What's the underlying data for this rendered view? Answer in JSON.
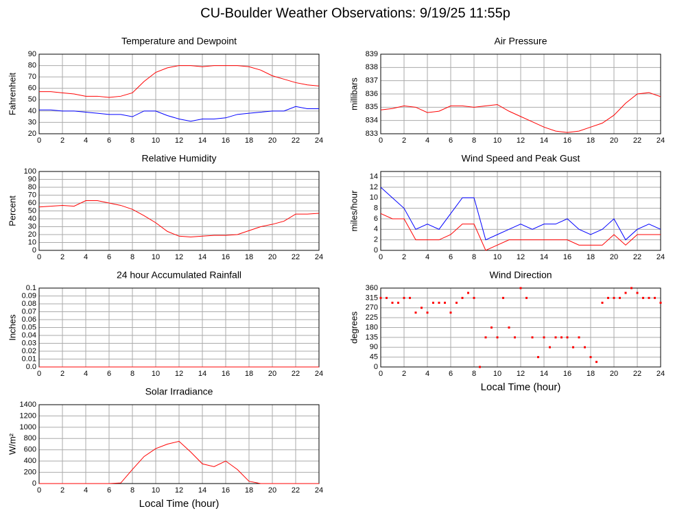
{
  "title": "CU-Boulder Weather Observations: 9/19/25 11:55p",
  "chart_data": [
    {
      "type": "line",
      "title": "Temperature and Dewpoint",
      "y_label": "Fahrenheit",
      "x": [
        0,
        1,
        2,
        3,
        4,
        5,
        6,
        7,
        8,
        9,
        10,
        11,
        12,
        13,
        14,
        15,
        16,
        17,
        18,
        19,
        20,
        21,
        22,
        23,
        24
      ],
      "series": [
        {
          "color": "#ff0000",
          "values": [
            57,
            57,
            56,
            55,
            53,
            53,
            52,
            53,
            56,
            66,
            74,
            78,
            80,
            80,
            79,
            80,
            80,
            80,
            79,
            76,
            71,
            68,
            65,
            63,
            62
          ]
        },
        {
          "color": "#0000ff",
          "values": [
            41,
            41,
            40,
            40,
            39,
            38,
            37,
            37,
            35,
            40,
            40,
            36,
            33,
            31,
            33,
            33,
            34,
            37,
            38,
            39,
            40,
            40,
            44,
            42,
            42
          ]
        }
      ],
      "xlim": [
        0,
        24
      ],
      "xticks": [
        0,
        2,
        4,
        6,
        8,
        10,
        12,
        14,
        16,
        18,
        20,
        22,
        24
      ],
      "ylim": [
        20,
        90
      ],
      "yticks": [
        20,
        30,
        40,
        50,
        60,
        70,
        80,
        90
      ],
      "grid": true
    },
    {
      "type": "line",
      "title": "Air Pressure",
      "y_label": "millibars",
      "x": [
        0,
        1,
        2,
        3,
        4,
        5,
        6,
        7,
        8,
        9,
        10,
        11,
        12,
        13,
        14,
        15,
        16,
        17,
        18,
        19,
        20,
        21,
        22,
        23,
        24
      ],
      "series": [
        {
          "color": "#ff0000",
          "values": [
            834.8,
            834.9,
            835.1,
            835.0,
            834.6,
            834.7,
            835.1,
            835.1,
            835.0,
            835.1,
            835.2,
            834.7,
            834.3,
            833.9,
            833.5,
            833.2,
            833.1,
            833.2,
            833.5,
            833.8,
            834.4,
            835.3,
            836.0,
            836.1,
            835.8
          ]
        }
      ],
      "xlim": [
        0,
        24
      ],
      "xticks": [
        0,
        2,
        4,
        6,
        8,
        10,
        12,
        14,
        16,
        18,
        20,
        22,
        24
      ],
      "ylim": [
        833,
        839
      ],
      "yticks": [
        833,
        834,
        835,
        836,
        837,
        838,
        839
      ],
      "grid": true
    },
    {
      "type": "line",
      "title": "Relative Humidity",
      "y_label": "Percent",
      "x": [
        0,
        1,
        2,
        3,
        4,
        5,
        6,
        7,
        8,
        9,
        10,
        11,
        12,
        13,
        14,
        15,
        16,
        17,
        18,
        19,
        20,
        21,
        22,
        23,
        24
      ],
      "series": [
        {
          "color": "#ff0000",
          "values": [
            55,
            56,
            57,
            56,
            63,
            63,
            60,
            57,
            52,
            44,
            35,
            24,
            18,
            17,
            18,
            19,
            19,
            20,
            25,
            30,
            33,
            37,
            46,
            46,
            47
          ]
        }
      ],
      "xlim": [
        0,
        24
      ],
      "xticks": [
        0,
        2,
        4,
        6,
        8,
        10,
        12,
        14,
        16,
        18,
        20,
        22,
        24
      ],
      "ylim": [
        0,
        100
      ],
      "yticks": [
        0,
        10,
        20,
        30,
        40,
        50,
        60,
        70,
        80,
        90,
        100
      ],
      "grid": true
    },
    {
      "type": "line",
      "title": "Wind Speed and Peak Gust",
      "y_label": "miles/hour",
      "x": [
        0,
        1,
        2,
        3,
        4,
        5,
        6,
        7,
        8,
        9,
        10,
        11,
        12,
        13,
        14,
        15,
        16,
        17,
        18,
        19,
        20,
        21,
        22,
        23,
        24
      ],
      "series": [
        {
          "color": "#0000ff",
          "values": [
            12,
            10,
            8,
            4,
            5,
            4,
            7,
            10,
            10,
            2,
            3,
            4,
            5,
            4,
            5,
            5,
            6,
            4,
            3,
            4,
            6,
            2,
            4,
            5,
            4
          ]
        },
        {
          "color": "#ff0000",
          "values": [
            7,
            6,
            6,
            2,
            2,
            2,
            3,
            5,
            5,
            0,
            1,
            2,
            2,
            2,
            2,
            2,
            2,
            1,
            1,
            1,
            3,
            1,
            3,
            3,
            3
          ]
        }
      ],
      "xlim": [
        0,
        24
      ],
      "xticks": [
        0,
        2,
        4,
        6,
        8,
        10,
        12,
        14,
        16,
        18,
        20,
        22,
        24
      ],
      "ylim": [
        0,
        15
      ],
      "yticks": [
        0,
        2,
        4,
        6,
        8,
        10,
        12,
        14
      ],
      "grid": true
    },
    {
      "type": "line",
      "title": "24 hour Accumulated Rainfall",
      "y_label": "Inches",
      "x": [
        0,
        4,
        8,
        12,
        16,
        20,
        24
      ],
      "series": [
        {
          "color": "#ff0000",
          "values": [
            0,
            0,
            0,
            0,
            0,
            0,
            0
          ]
        }
      ],
      "xlim": [
        0,
        24
      ],
      "xticks": [
        0,
        2,
        4,
        6,
        8,
        10,
        12,
        14,
        16,
        18,
        20,
        22,
        24
      ],
      "ylim": [
        0,
        0.1
      ],
      "yticks": [
        {
          "value": 0,
          "label": "0.0"
        },
        0.01,
        0.02,
        0.03,
        0.04,
        0.05,
        0.06,
        0.07,
        0.08,
        0.09,
        0.1
      ],
      "grid": true
    },
    {
      "type": "scatter",
      "title": "Wind Direction",
      "y_label": "degrees",
      "x_label": "Local Time (hour)",
      "x": [
        0,
        0.5,
        1,
        1.5,
        2,
        2.5,
        3,
        3.5,
        4,
        4.5,
        5,
        5.5,
        6,
        6.5,
        7,
        7.5,
        8,
        8.5,
        9,
        9.5,
        10,
        10.5,
        11,
        11.5,
        12,
        12.5,
        13,
        13.5,
        14,
        14.5,
        15,
        15.5,
        16,
        16.5,
        17,
        17.5,
        18,
        18.5,
        19,
        19.5,
        20,
        20.5,
        21,
        21.5,
        22,
        22.5,
        23,
        23.5,
        24
      ],
      "series": [
        {
          "color": "#ff0000",
          "values": [
            315,
            315,
            293,
            293,
            315,
            315,
            248,
            270,
            248,
            293,
            293,
            293,
            248,
            293,
            315,
            338,
            315,
            0,
            135,
            180,
            135,
            315,
            180,
            135,
            360,
            315,
            135,
            45,
            135,
            90,
            135,
            135,
            135,
            90,
            135,
            90,
            45,
            23,
            293,
            315,
            315,
            315,
            338,
            360,
            338,
            315,
            315,
            315,
            293
          ]
        }
      ],
      "xlim": [
        0,
        24
      ],
      "xticks": [
        0,
        2,
        4,
        6,
        8,
        10,
        12,
        14,
        16,
        18,
        20,
        22,
        24
      ],
      "ylim": [
        0,
        360
      ],
      "yticks": [
        0,
        45,
        90,
        135,
        180,
        225,
        270,
        315,
        360
      ],
      "grid": true
    },
    {
      "type": "line",
      "title": "Solar Irradiance",
      "y_label": "W/m²",
      "x_label": "Local Time (hour)",
      "x": [
        0,
        1,
        2,
        3,
        4,
        5,
        6,
        7,
        8,
        9,
        10,
        11,
        12,
        13,
        14,
        15,
        16,
        17,
        18,
        19,
        20,
        21,
        22,
        23,
        24
      ],
      "series": [
        {
          "color": "#ff0000",
          "values": [
            0,
            0,
            0,
            0,
            0,
            0,
            0,
            10,
            250,
            480,
            620,
            700,
            750,
            560,
            350,
            300,
            400,
            250,
            40,
            0,
            0,
            0,
            0,
            0,
            0
          ]
        }
      ],
      "xlim": [
        0,
        24
      ],
      "xticks": [
        0,
        2,
        4,
        6,
        8,
        10,
        12,
        14,
        16,
        18,
        20,
        22,
        24
      ],
      "ylim": [
        0,
        1400
      ],
      "yticks": [
        0,
        200,
        400,
        600,
        800,
        1000,
        1200,
        1400
      ],
      "grid": true
    }
  ]
}
